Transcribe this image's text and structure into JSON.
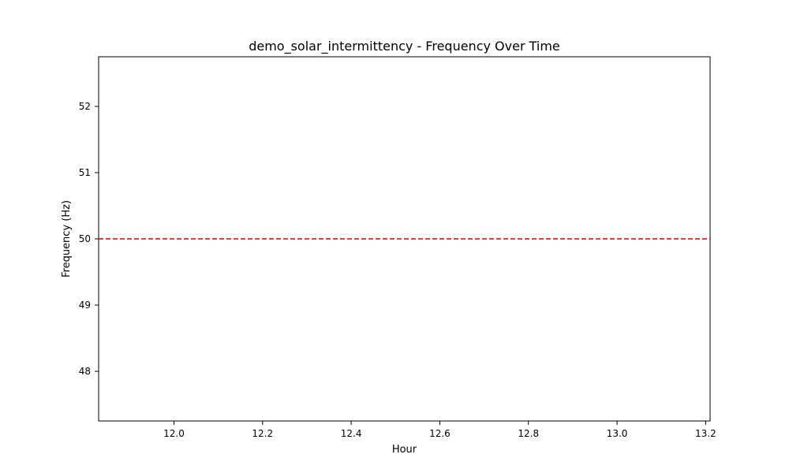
{
  "chart_data": {
    "type": "line",
    "title": "demo_solar_intermittency - Frequency Over Time",
    "xlabel": "Hour",
    "ylabel": "Frequency (Hz)",
    "xlim": [
      11.83,
      13.21
    ],
    "ylim": [
      47.25,
      52.75
    ],
    "x_ticks": [
      12.0,
      12.2,
      12.4,
      12.6,
      12.8,
      13.0,
      13.2
    ],
    "x_tick_labels": [
      "12.0",
      "12.2",
      "12.4",
      "12.6",
      "12.8",
      "13.0",
      "13.2"
    ],
    "y_ticks": [
      48,
      49,
      50,
      51,
      52
    ],
    "y_tick_labels": [
      "48",
      "49",
      "50",
      "51",
      "52"
    ],
    "grid": false,
    "series": [],
    "reference_lines": [
      {
        "orientation": "horizontal",
        "y": 50,
        "style": "dashed",
        "color": "#e00000"
      }
    ]
  }
}
